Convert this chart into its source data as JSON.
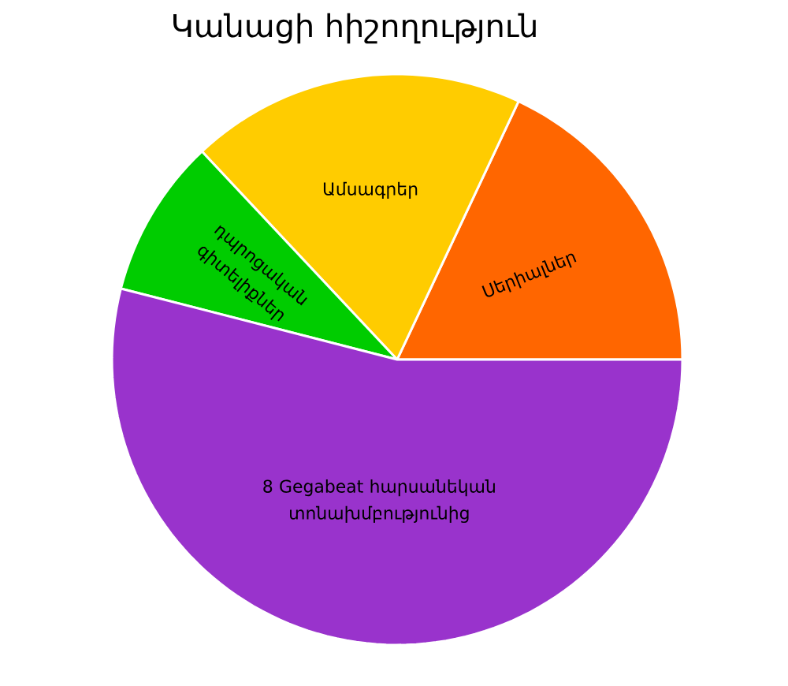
{
  "chart_data": {
    "type": "pie",
    "title": "Կանացի հիշողություն",
    "categories": [
      "Սերիալներ",
      "Ամսագրեր",
      "դպրոցական գիտելիքներ",
      "8 Gegabeat հարսանեկան տոնախմբությունից"
    ],
    "values": [
      18,
      19,
      9,
      54
    ],
    "colors": [
      "#ff6600",
      "#ffcc00",
      "#00cc00",
      "#9933cc"
    ]
  }
}
